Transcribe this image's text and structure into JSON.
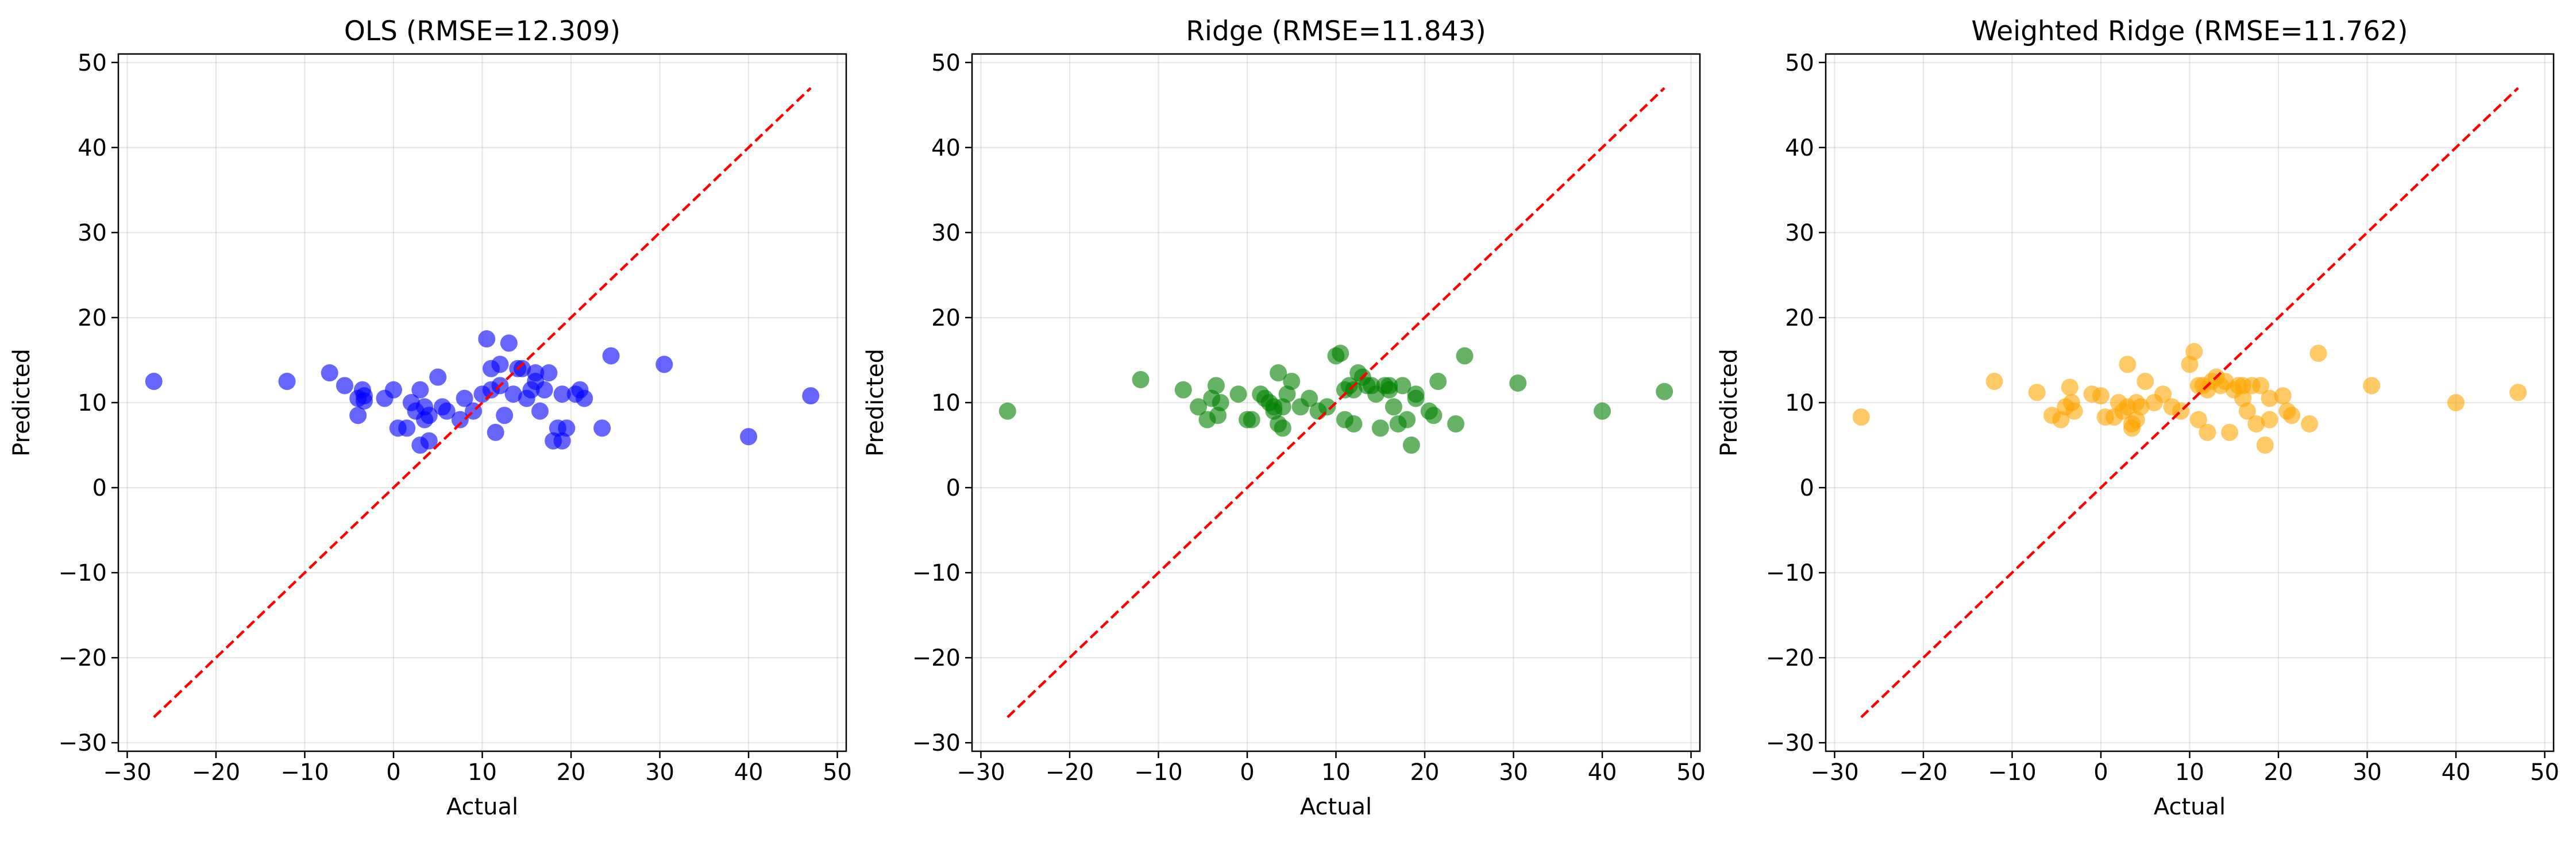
{
  "chart_data": [
    {
      "type": "scatter",
      "title": "OLS (RMSE=12.309)",
      "xlabel": "Actual",
      "ylabel": "Predicted",
      "xlim": [
        -31,
        51
      ],
      "ylim": [
        -31,
        51
      ],
      "xticks": [
        -30,
        -20,
        -10,
        0,
        10,
        20,
        30,
        40,
        50
      ],
      "yticks": [
        -30,
        -20,
        -10,
        0,
        10,
        20,
        30,
        40,
        50
      ],
      "xtick_labels": [
        "−30",
        "−20",
        "−10",
        "0",
        "10",
        "20",
        "30",
        "40",
        "50"
      ],
      "ytick_labels": [
        "−30",
        "−20",
        "−10",
        "0",
        "10",
        "20",
        "30",
        "40",
        "50"
      ],
      "grid": true,
      "point_color": "#0000ff",
      "reference_line": {
        "x": [
          -27,
          47
        ],
        "y": [
          -27,
          47
        ],
        "color": "#ff0000",
        "style": "dashed"
      },
      "series": [
        {
          "x": [
            -27,
            -12,
            -7.2,
            -5.5,
            -4,
            -4,
            -3.5,
            -3.3,
            -3.3,
            -1,
            0,
            0.5,
            1.5,
            2,
            2.5,
            3,
            3,
            3.5,
            3.5,
            4,
            4,
            5,
            5.5,
            6,
            7.5,
            8,
            9,
            10,
            10.5,
            11,
            11,
            11.5,
            12,
            12,
            12.5,
            13,
            13.5,
            14,
            14.5,
            15,
            15.5,
            16,
            16,
            16.5,
            17,
            17.5,
            18,
            18.5,
            19,
            19,
            19.5,
            20.5,
            21,
            21.5,
            23.5,
            24.5,
            30.5,
            40,
            47
          ],
          "y": [
            12.5,
            12.5,
            13.5,
            12,
            8.5,
            10.5,
            11.5,
            10.8,
            10.2,
            10.5,
            11.5,
            7,
            7,
            10,
            9,
            5,
            11.5,
            9.5,
            8,
            5.5,
            8.5,
            13,
            9.5,
            9,
            8,
            10.5,
            9,
            11,
            17.5,
            14,
            11.5,
            6.5,
            14.5,
            12,
            8.5,
            17,
            11,
            14,
            14,
            10.5,
            11.5,
            13.5,
            12.5,
            9,
            11.5,
            13.5,
            5.5,
            7,
            11,
            5.5,
            7,
            11,
            11.5,
            10.5,
            7,
            15.5,
            14.5,
            6,
            10.8
          ]
        }
      ]
    },
    {
      "type": "scatter",
      "title": "Ridge (RMSE=11.843)",
      "xlabel": "Actual",
      "ylabel": "Predicted",
      "xlim": [
        -31,
        51
      ],
      "ylim": [
        -31,
        51
      ],
      "xticks": [
        -30,
        -20,
        -10,
        0,
        10,
        20,
        30,
        40,
        50
      ],
      "yticks": [
        -30,
        -20,
        -10,
        0,
        10,
        20,
        30,
        40,
        50
      ],
      "xtick_labels": [
        "−30",
        "−20",
        "−10",
        "0",
        "10",
        "20",
        "30",
        "40",
        "50"
      ],
      "ytick_labels": [
        "−30",
        "−20",
        "−10",
        "0",
        "10",
        "20",
        "30",
        "40",
        "50"
      ],
      "grid": true,
      "point_color": "#008000",
      "reference_line": {
        "x": [
          -27,
          47
        ],
        "y": [
          -27,
          47
        ],
        "color": "#ff0000",
        "style": "dashed"
      },
      "series": [
        {
          "x": [
            -27,
            -12,
            -7.2,
            -5.5,
            -4.5,
            -4,
            -3.5,
            -3.3,
            -3,
            -1,
            0,
            0.5,
            1.5,
            2,
            2.5,
            3,
            3,
            3.5,
            3.5,
            4,
            4,
            4.5,
            5,
            6,
            7,
            8,
            9,
            10,
            10.5,
            11,
            11,
            11.5,
            12,
            12,
            12.5,
            13,
            13.5,
            14,
            14.5,
            15,
            15.5,
            16,
            16,
            16.5,
            17,
            17.5,
            18,
            18.5,
            19,
            19,
            20.5,
            21,
            21.5,
            23.5,
            24.5,
            30.5,
            40,
            47
          ],
          "y": [
            9,
            12.7,
            11.5,
            9.5,
            8,
            10.5,
            12,
            8.5,
            10,
            11,
            8,
            8,
            11,
            10.5,
            10,
            9,
            9.5,
            13.5,
            7.5,
            7,
            9.5,
            11,
            12.5,
            9.5,
            10.5,
            9,
            9.5,
            15.5,
            15.8,
            11.5,
            8,
            12,
            7.5,
            11.5,
            13.5,
            13,
            12,
            12,
            11,
            7,
            12,
            11.5,
            12,
            9.5,
            7.5,
            12,
            8,
            5,
            10.5,
            11,
            9,
            8.5,
            12.5,
            7.5,
            15.5,
            12.3,
            9,
            11.3
          ]
        }
      ]
    },
    {
      "type": "scatter",
      "title": "Weighted Ridge (RMSE=11.762)",
      "xlabel": "Actual",
      "ylabel": "Predicted",
      "xlim": [
        -31,
        51
      ],
      "ylim": [
        -31,
        51
      ],
      "xticks": [
        -30,
        -20,
        -10,
        0,
        10,
        20,
        30,
        40,
        50
      ],
      "yticks": [
        -30,
        -20,
        -10,
        0,
        10,
        20,
        30,
        40,
        50
      ],
      "xtick_labels": [
        "−30",
        "−20",
        "−10",
        "0",
        "10",
        "20",
        "30",
        "40",
        "50"
      ],
      "ytick_labels": [
        "−30",
        "−20",
        "−10",
        "0",
        "10",
        "20",
        "30",
        "40",
        "50"
      ],
      "grid": true,
      "point_color": "#ffa500",
      "reference_line": {
        "x": [
          -27,
          47
        ],
        "y": [
          -27,
          47
        ],
        "color": "#ff0000",
        "style": "dashed"
      },
      "series": [
        {
          "x": [
            -27,
            -12,
            -7.2,
            -5.5,
            -4.5,
            -4,
            -3.5,
            -3.3,
            -3,
            -1,
            0,
            0.5,
            1.5,
            2,
            2.5,
            3,
            3,
            3.5,
            3.5,
            4,
            4,
            4.5,
            5,
            6,
            7,
            8,
            9,
            10,
            10.5,
            11,
            11,
            11.5,
            12,
            12,
            12.5,
            13,
            13.5,
            14,
            14.5,
            15,
            15.5,
            16,
            16,
            16.5,
            17,
            17.5,
            18,
            18.5,
            19,
            19,
            20.5,
            21,
            21.5,
            23.5,
            24.5,
            30.5,
            40,
            47
          ],
          "y": [
            8.3,
            12.5,
            11.2,
            8.5,
            8,
            9.5,
            11.8,
            10,
            9,
            11,
            10.8,
            8.3,
            8.3,
            10,
            9,
            9.5,
            14.5,
            7.5,
            7,
            10,
            8,
            9.5,
            12.5,
            10,
            11,
            9.5,
            9,
            14.5,
            16,
            12,
            8,
            12,
            6.5,
            11.5,
            12.5,
            13,
            12,
            12.5,
            6.5,
            11.5,
            12,
            10.5,
            12,
            9,
            12,
            7.5,
            12,
            5,
            8,
            10.5,
            10.8,
            9,
            8.5,
            7.5,
            15.8,
            12,
            10,
            11.2
          ]
        }
      ]
    }
  ]
}
